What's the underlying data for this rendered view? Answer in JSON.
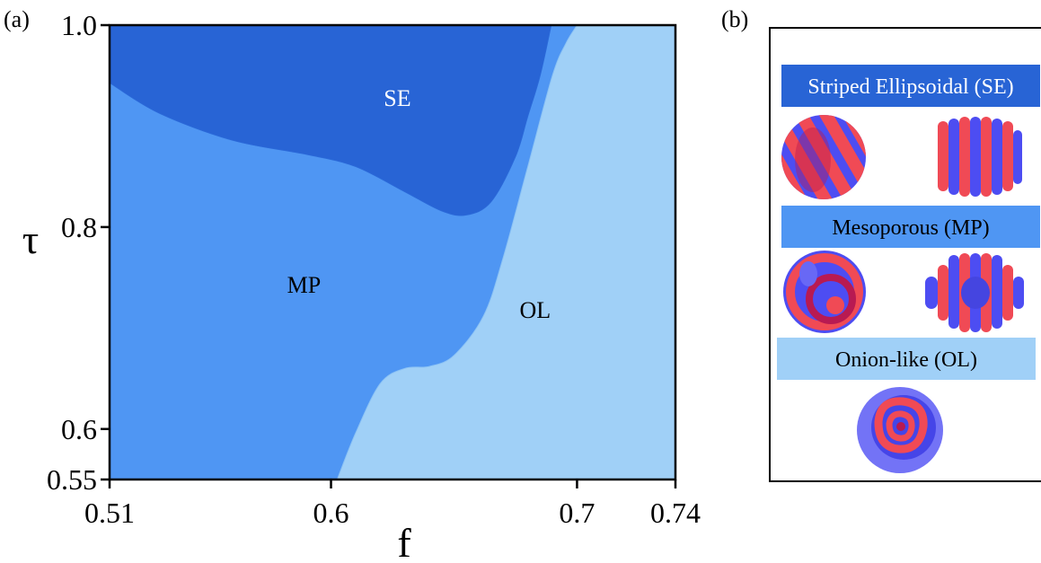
{
  "figure": {
    "panel_a_tag": "(a)",
    "panel_b_tag": "(b)"
  },
  "chart_data": {
    "type": "area",
    "title": "",
    "xlabel": "f",
    "ylabel": "τ",
    "xlim": [
      0.51,
      0.74
    ],
    "ylim": [
      0.55,
      1.0
    ],
    "x_ticks": [
      {
        "value": 0.51,
        "label": "0.51"
      },
      {
        "value": 0.6,
        "label": "0.6"
      },
      {
        "value": 0.7,
        "label": "0.7"
      },
      {
        "value": 0.74,
        "label": "0.74"
      }
    ],
    "y_ticks": [
      {
        "value": 0.55,
        "label": "0.55"
      },
      {
        "value": 0.6,
        "label": "0.6"
      },
      {
        "value": 0.8,
        "label": "0.8"
      },
      {
        "value": 1.0,
        "label": "1.0"
      }
    ],
    "grid": false,
    "phases": [
      {
        "name": "SE",
        "color": "#2864d5",
        "label_at": [
          0.627,
          0.92
        ]
      },
      {
        "name": "MP",
        "color": "#4f96f3",
        "label_at": [
          0.589,
          0.735
        ]
      },
      {
        "name": "OL",
        "color": "#a0d0f7",
        "label_at": [
          0.683,
          0.71
        ]
      }
    ],
    "boundaries": [
      {
        "between": [
          "SE",
          "MP"
        ],
        "points": [
          [
            0.51,
            0.943
          ],
          [
            0.53,
            0.913
          ],
          [
            0.56,
            0.886
          ],
          [
            0.59,
            0.872
          ],
          [
            0.61,
            0.86
          ],
          [
            0.63,
            0.835
          ],
          [
            0.645,
            0.816
          ],
          [
            0.655,
            0.812
          ],
          [
            0.665,
            0.825
          ],
          [
            0.675,
            0.87
          ],
          [
            0.68,
            0.91
          ],
          [
            0.685,
            0.95
          ],
          [
            0.6895,
            1.0
          ]
        ]
      },
      {
        "between": [
          "MP",
          "OL"
        ],
        "points": [
          [
            0.6025,
            0.55
          ],
          [
            0.61,
            0.596
          ],
          [
            0.62,
            0.645
          ],
          [
            0.63,
            0.66
          ],
          [
            0.64,
            0.662
          ],
          [
            0.65,
            0.673
          ],
          [
            0.662,
            0.712
          ],
          [
            0.67,
            0.77
          ],
          [
            0.68,
            0.86
          ],
          [
            0.69,
            0.95
          ],
          [
            0.6955,
            0.982
          ],
          [
            0.7,
            1.0
          ]
        ]
      }
    ]
  },
  "legend": {
    "se": {
      "title": "Striped Ellipsoidal (SE)",
      "color": "#2864d5",
      "text_color": "#ffffff"
    },
    "mp": {
      "title": "Mesoporous (MP)",
      "color": "#4f96f3",
      "text_color": "#000000"
    },
    "ol": {
      "title": "Onion-like (OL)",
      "color": "#a0d0f7",
      "text_color": "#000000"
    },
    "sphere_colors": {
      "red": "#f04a55",
      "blue": "#4d4df2",
      "overlap": "#b81a52"
    }
  }
}
